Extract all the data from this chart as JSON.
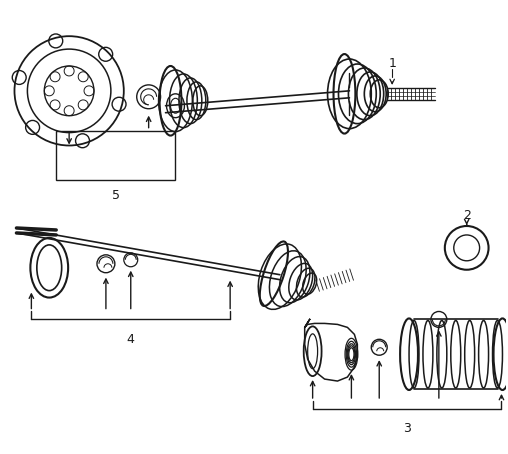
{
  "background_color": "#ffffff",
  "line_color": "#1a1a1a",
  "fig_width": 5.08,
  "fig_height": 4.54,
  "dpi": 100
}
